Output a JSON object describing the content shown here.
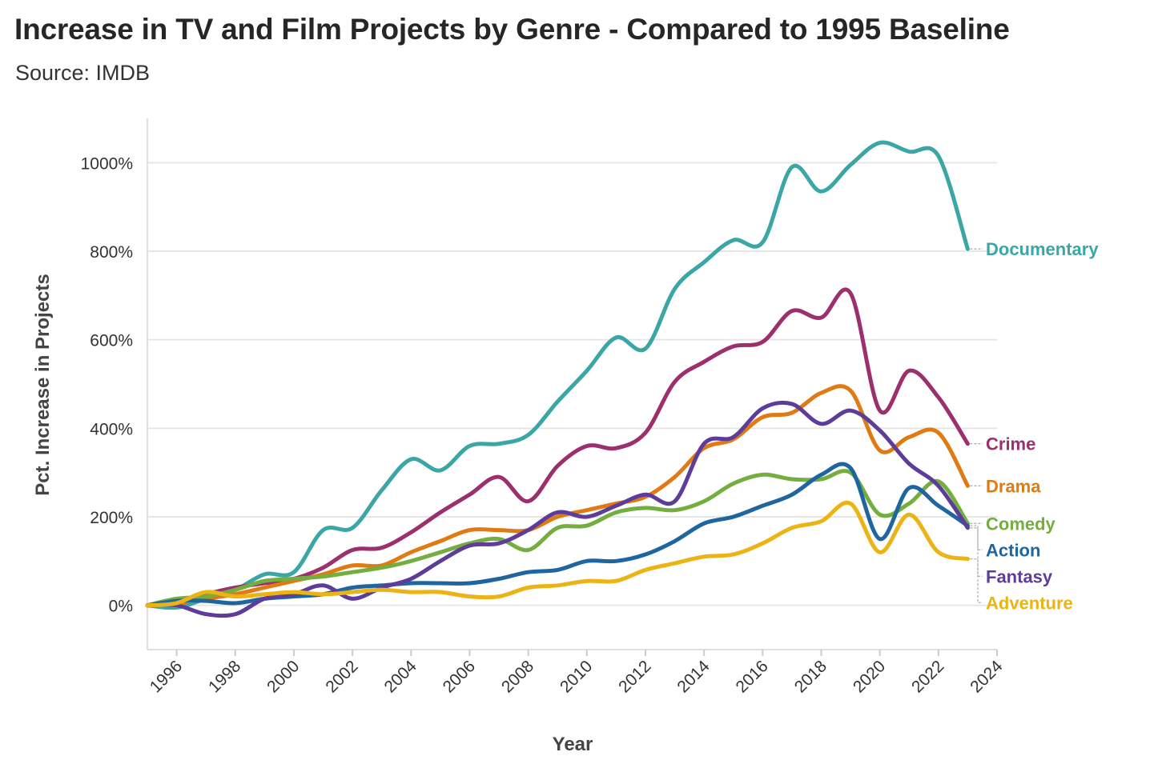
{
  "chart_data": {
    "type": "line",
    "title": "Increase in TV and Film Projects by Genre - Compared to 1995 Baseline",
    "subtitle": "Source: IMDB",
    "xlabel": "Year",
    "ylabel": "Pct. Increase in Projects",
    "xlim": [
      1995,
      2024
    ],
    "ylim": [
      -100,
      1100
    ],
    "x_ticks": [
      1996,
      1998,
      2000,
      2002,
      2004,
      2006,
      2008,
      2010,
      2012,
      2014,
      2016,
      2018,
      2020,
      2022,
      2024
    ],
    "y_ticks": [
      0,
      200,
      400,
      600,
      800,
      1000
    ],
    "y_tick_labels": [
      "0%",
      "200%",
      "400%",
      "600%",
      "800%",
      "1000%"
    ],
    "grid": "horizontal",
    "legend": "direct labels at line ends (right)",
    "x": [
      1995,
      1996,
      1997,
      1998,
      1999,
      2000,
      2001,
      2002,
      2003,
      2004,
      2005,
      2006,
      2007,
      2008,
      2009,
      2010,
      2011,
      2012,
      2013,
      2014,
      2015,
      2016,
      2017,
      2018,
      2019,
      2020,
      2021,
      2022,
      2023
    ],
    "series": [
      {
        "name": "Documentary",
        "color": "#3aa6a6",
        "values": [
          0,
          -5,
          15,
          35,
          70,
          75,
          170,
          175,
          260,
          330,
          305,
          360,
          365,
          385,
          460,
          530,
          605,
          580,
          715,
          775,
          825,
          820,
          990,
          935,
          995,
          1045,
          1025,
          1015,
          805
        ]
      },
      {
        "name": "Crime",
        "color": "#9c2f6e",
        "values": [
          0,
          5,
          25,
          40,
          50,
          60,
          85,
          125,
          130,
          165,
          210,
          250,
          290,
          235,
          315,
          360,
          355,
          390,
          505,
          550,
          585,
          595,
          665,
          650,
          705,
          440,
          530,
          470,
          365
        ]
      },
      {
        "name": "Drama",
        "color": "#e07b14",
        "values": [
          0,
          5,
          15,
          25,
          40,
          55,
          70,
          90,
          90,
          120,
          145,
          170,
          170,
          170,
          200,
          215,
          230,
          245,
          290,
          355,
          375,
          425,
          435,
          480,
          485,
          350,
          380,
          390,
          270
        ]
      },
      {
        "name": "Comedy",
        "color": "#74ae3f",
        "values": [
          0,
          15,
          20,
          35,
          55,
          60,
          65,
          75,
          85,
          100,
          120,
          140,
          150,
          125,
          175,
          180,
          210,
          220,
          215,
          235,
          275,
          295,
          285,
          285,
          300,
          205,
          230,
          280,
          185
        ]
      },
      {
        "name": "Action",
        "color": "#1f65a0",
        "values": [
          0,
          10,
          10,
          5,
          15,
          20,
          25,
          40,
          45,
          50,
          50,
          50,
          60,
          75,
          80,
          100,
          100,
          115,
          145,
          185,
          200,
          225,
          250,
          295,
          310,
          150,
          265,
          225,
          180
        ]
      },
      {
        "name": "Fantasy",
        "color": "#5d3d99",
        "values": [
          0,
          0,
          -20,
          -20,
          15,
          25,
          45,
          15,
          40,
          60,
          100,
          135,
          140,
          170,
          210,
          200,
          225,
          250,
          235,
          365,
          380,
          445,
          455,
          410,
          440,
          395,
          320,
          270,
          175
        ]
      },
      {
        "name": "Adventure",
        "color": "#ecb315",
        "values": [
          0,
          5,
          30,
          20,
          25,
          30,
          25,
          30,
          35,
          30,
          30,
          20,
          20,
          40,
          45,
          55,
          55,
          80,
          95,
          110,
          115,
          140,
          175,
          190,
          230,
          120,
          205,
          120,
          105
        ]
      }
    ]
  }
}
